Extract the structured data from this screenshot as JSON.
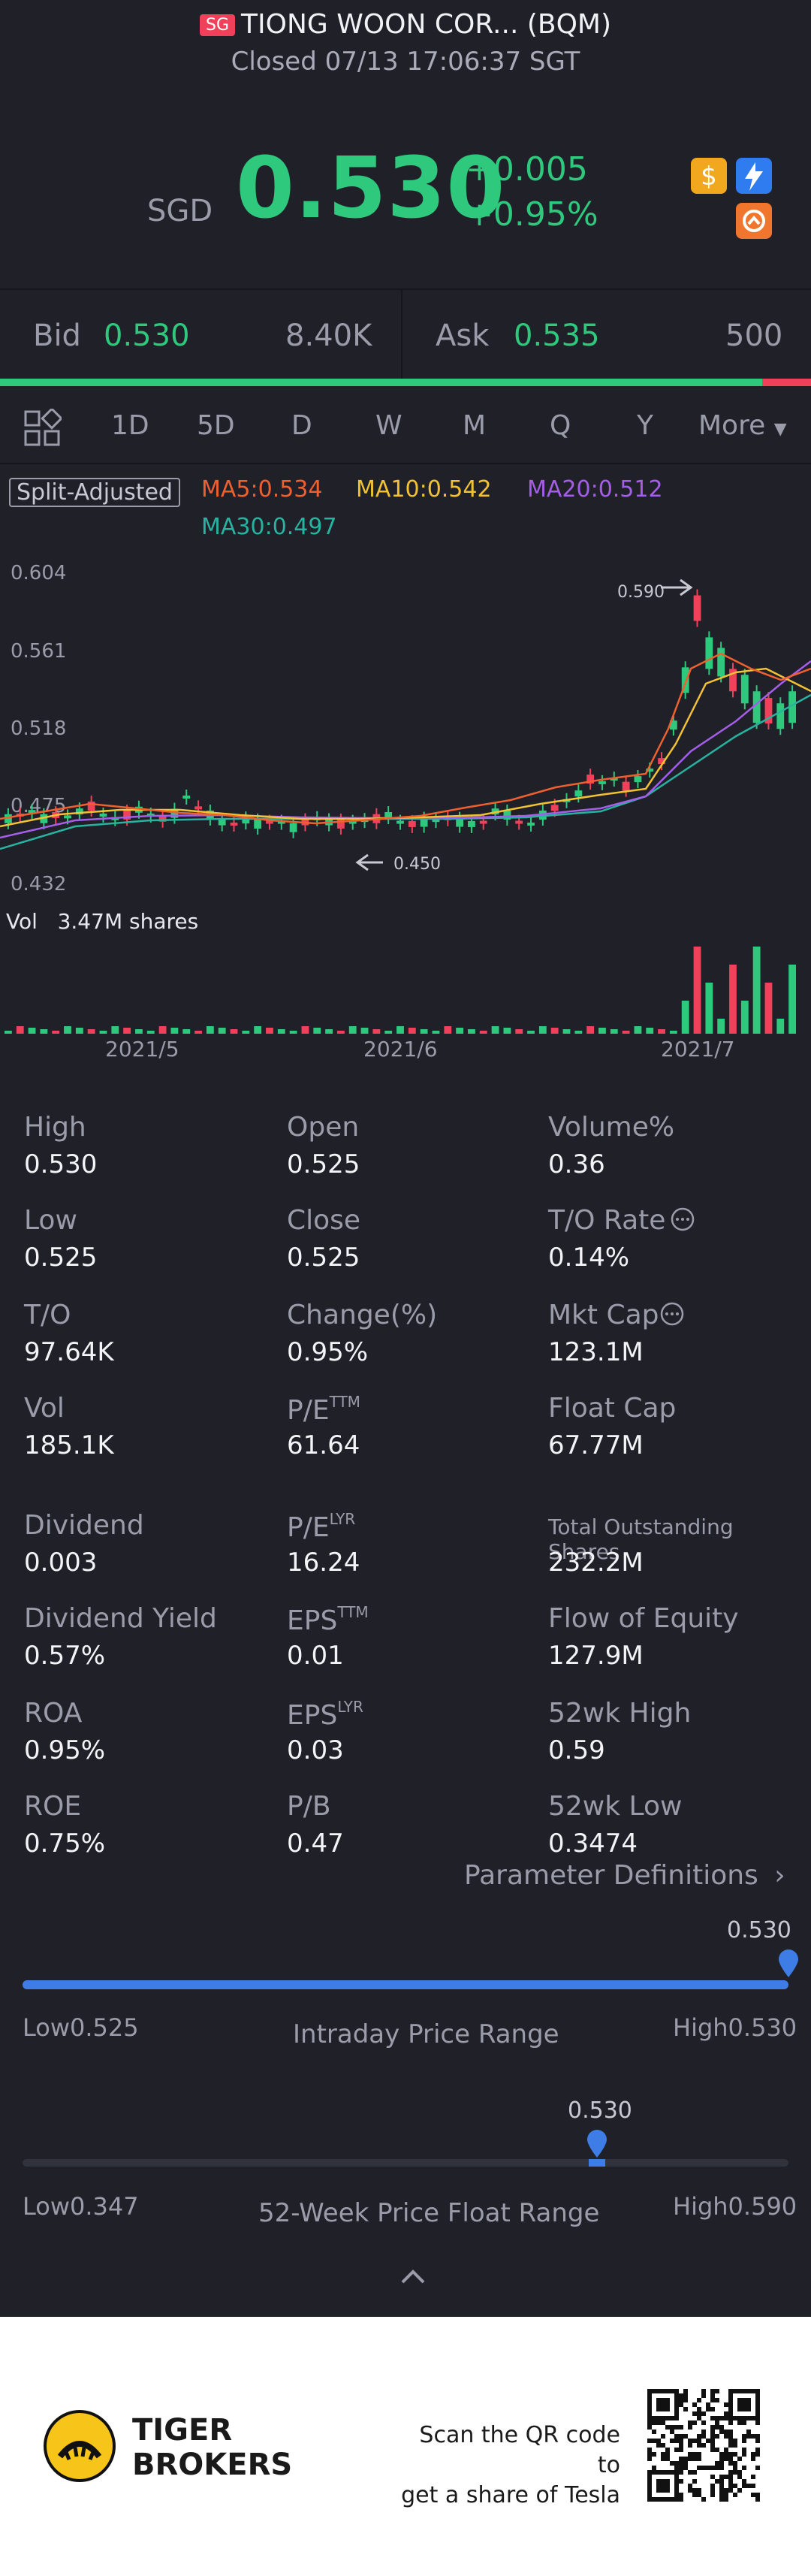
{
  "header": {
    "market_badge": "SG",
    "title": "TIONG WOON COR... (BQM)",
    "status": "Closed 07/13 17:06:37 SGT"
  },
  "quote": {
    "currency": "SGD",
    "price": "0.530",
    "change": "+0.005",
    "change_pct": "+0.95%"
  },
  "orderbook": {
    "bid_label": "Bid",
    "bid_price": "0.530",
    "bid_size": "8.40K",
    "ask_label": "Ask",
    "ask_price": "0.535",
    "ask_size": "500",
    "bid_share": 0.94
  },
  "period_tabs": {
    "items": [
      "1D",
      "5D",
      "D",
      "W",
      "M",
      "Q",
      "Y"
    ],
    "active": "D",
    "more": "More"
  },
  "indicators": {
    "adjust": "Split-Adjusted",
    "ma5": "MA5:0.534",
    "ma10": "MA10:0.542",
    "ma20": "MA20:0.512",
    "ma30": "MA30:0.497"
  },
  "chart_data": {
    "type": "candlestick",
    "y_ticks": [
      "0.604",
      "0.561",
      "0.518",
      "0.475",
      "0.432"
    ],
    "ylim": [
      0.432,
      0.604
    ],
    "x_ticks": [
      "2021/5",
      "2021/6",
      "2021/7"
    ],
    "max_marker": "0.590",
    "min_marker": "0.450",
    "volume_label": "Vol",
    "volume_value": "3.47M shares",
    "colors": {
      "up": "#2ec97d",
      "down": "#f0405a",
      "ma5": "#f0602e",
      "ma10": "#f2c232",
      "ma20": "#a45ee8",
      "ma30": "#27b3a0"
    }
  },
  "stats": [
    {
      "label": "High",
      "value": "0.530"
    },
    {
      "label": "Open",
      "value": "0.525"
    },
    {
      "label": "Volume%",
      "value": "0.36"
    },
    {
      "label": "Low",
      "value": "0.525"
    },
    {
      "label": "Close",
      "value": "0.525"
    },
    {
      "label": "T/O Rate",
      "value": "0.14%"
    },
    {
      "label": "T/O",
      "value": "97.64K"
    },
    {
      "label": "Change(%)",
      "value": "0.95%"
    },
    {
      "label": "Mkt Cap",
      "value": "123.1M"
    },
    {
      "label": "Vol",
      "value": "185.1K"
    },
    {
      "label": "P/E",
      "sup": "TTM",
      "value": "61.64"
    },
    {
      "label": "Float Cap",
      "value": "67.77M"
    },
    {
      "label": "Dividend",
      "value": "0.003"
    },
    {
      "label": "P/E",
      "sup": "LYR",
      "value": "16.24"
    },
    {
      "label": "Total Outstanding Shares",
      "value": "232.2M"
    },
    {
      "label": "Dividend Yield",
      "value": "0.57%"
    },
    {
      "label": "EPS",
      "sup": "TTM",
      "value": "0.01"
    },
    {
      "label": "Flow of Equity",
      "value": "127.9M"
    },
    {
      "label": "ROA",
      "value": "0.95%"
    },
    {
      "label": "EPS",
      "sup": "LYR",
      "value": "0.03"
    },
    {
      "label": "52wk High",
      "value": "0.59"
    },
    {
      "label": "ROE",
      "value": "0.75%"
    },
    {
      "label": "P/B",
      "value": "0.47"
    },
    {
      "label": "52wk Low",
      "value": "0.3474"
    }
  ],
  "param_link": "Parameter Definitions",
  "intraday_range": {
    "title": "Intraday Price Range",
    "current": "0.530",
    "low": "Low0.525",
    "high": "High0.530",
    "position": 1.0
  },
  "week52_range": {
    "title": "52-Week Price Float Range",
    "current": "0.530",
    "low": "Low0.347",
    "high": "High0.590",
    "position": 0.75
  },
  "footer": {
    "brand_line1": "TIGER",
    "brand_line2": "BROKERS",
    "promo_line1": "Scan the QR code to",
    "promo_line2": "get a share of Tesla"
  }
}
